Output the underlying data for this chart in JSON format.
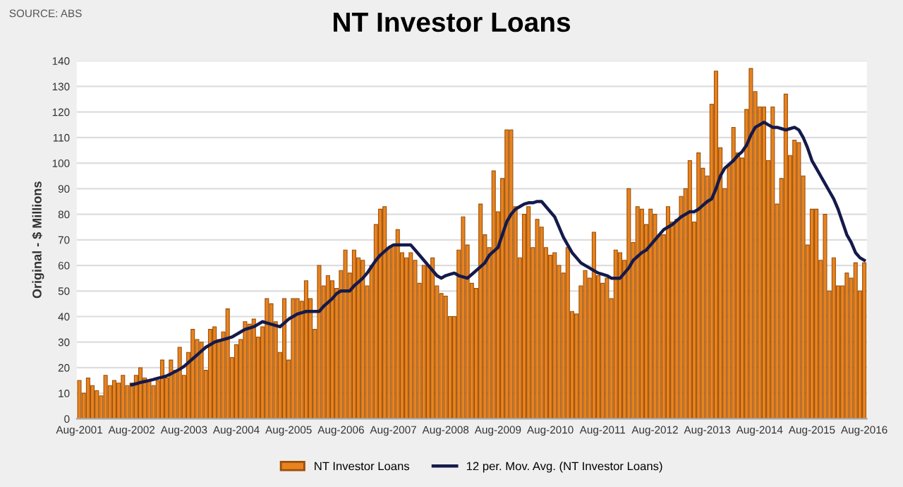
{
  "chart_data": {
    "type": "bar",
    "title": "NT Investor Loans",
    "ylabel": "Original - $ Millions",
    "annotations": [
      "SOURCE: ABS"
    ],
    "categories": [
      "Aug-2001",
      null,
      null,
      null,
      null,
      null,
      null,
      null,
      null,
      null,
      null,
      null,
      "Aug-2002",
      null,
      null,
      null,
      null,
      null,
      null,
      null,
      null,
      null,
      null,
      null,
      "Aug-2003",
      null,
      null,
      null,
      null,
      null,
      null,
      null,
      null,
      null,
      null,
      null,
      "Aug-2004",
      null,
      null,
      null,
      null,
      null,
      null,
      null,
      null,
      null,
      null,
      null,
      "Aug-2005",
      null,
      null,
      null,
      null,
      null,
      null,
      null,
      null,
      null,
      null,
      null,
      "Aug-2006",
      null,
      null,
      null,
      null,
      null,
      null,
      null,
      null,
      null,
      null,
      null,
      "Aug-2007",
      null,
      null,
      null,
      null,
      null,
      null,
      null,
      null,
      null,
      null,
      null,
      "Aug-2008",
      null,
      null,
      null,
      null,
      null,
      null,
      null,
      null,
      null,
      null,
      null,
      "Aug-2009",
      null,
      null,
      null,
      null,
      null,
      null,
      null,
      null,
      null,
      null,
      null,
      "Aug-2010",
      null,
      null,
      null,
      null,
      null,
      null,
      null,
      null,
      null,
      null,
      null,
      "Aug-2011",
      null,
      null,
      null,
      null,
      null,
      null,
      null,
      null,
      null,
      null,
      null,
      "Aug-2012",
      null,
      null,
      null,
      null,
      null,
      null,
      null,
      null,
      null,
      null,
      null,
      "Aug-2013",
      null,
      null,
      null,
      null,
      null,
      null,
      null,
      null,
      null,
      null,
      null,
      "Aug-2014",
      null,
      null,
      null,
      null,
      null,
      null,
      null,
      null,
      null,
      null,
      null,
      "Aug-2015",
      null,
      null,
      null,
      null,
      null,
      null,
      null,
      null,
      null,
      null,
      null,
      "Aug-2016"
    ],
    "series": [
      {
        "name": "NT Investor Loans",
        "color": "#e8831f",
        "values": [
          15,
          10,
          16,
          13,
          11,
          9,
          17,
          13,
          15,
          14,
          17,
          13,
          14,
          17,
          20,
          16,
          15,
          13,
          15,
          23,
          16,
          23,
          19,
          28,
          17,
          26,
          35,
          31,
          30,
          19,
          35,
          36,
          31,
          34,
          43,
          24,
          29,
          31,
          38,
          37,
          39,
          32,
          36,
          47,
          45,
          38,
          26,
          47,
          23,
          47,
          47,
          46,
          54,
          47,
          35,
          60,
          52,
          56,
          54,
          51,
          58,
          66,
          57,
          66,
          63,
          62,
          52,
          60,
          76,
          82,
          83,
          67,
          68,
          74,
          65,
          63,
          65,
          62,
          53,
          60,
          60,
          63,
          52,
          49,
          48,
          40,
          40,
          66,
          79,
          68,
          53,
          51,
          84,
          72,
          67,
          97,
          81,
          94,
          113,
          113,
          83,
          63,
          80,
          83,
          67,
          78,
          75,
          67,
          64,
          65,
          60,
          57,
          67,
          42,
          41,
          52,
          58,
          55,
          73,
          56,
          53,
          55,
          47,
          66,
          65,
          62,
          90,
          69,
          83,
          82,
          76,
          82,
          80,
          72,
          72,
          83,
          77,
          78,
          87,
          90,
          101,
          77,
          104,
          98,
          95,
          123,
          136,
          106,
          90,
          99,
          114,
          104,
          102,
          121,
          137,
          128,
          122,
          122,
          101,
          122,
          84,
          94,
          127,
          103,
          109,
          108,
          95,
          68,
          82,
          82,
          62,
          80,
          50,
          63,
          52,
          52,
          57,
          55,
          61,
          50,
          61
        ]
      },
      {
        "name": "12 per. Mov. Avg. (NT Investor Loans)",
        "type": "line",
        "color": "#141a4a",
        "values": [
          null,
          null,
          null,
          null,
          null,
          null,
          null,
          null,
          null,
          null,
          null,
          null,
          13.3,
          13.7,
          14.2,
          14.6,
          15,
          15.4,
          15.9,
          16.3,
          16.8,
          17.6,
          18.5,
          19.4,
          20.5,
          22,
          23.5,
          25,
          26.5,
          28,
          29,
          30,
          30.5,
          31,
          31.5,
          32,
          33,
          34,
          35,
          35.5,
          36,
          37,
          38,
          37.5,
          37,
          36.5,
          36,
          37.5,
          39,
          40,
          41,
          41.5,
          42,
          42,
          42,
          42,
          44,
          45.5,
          47,
          49,
          50,
          50,
          50,
          52,
          53.5,
          55,
          57,
          59.5,
          62,
          64,
          65.5,
          67,
          68,
          68,
          68,
          68,
          68,
          66,
          64,
          62,
          60,
          58,
          56,
          55,
          56,
          56.5,
          57,
          56,
          55.5,
          55,
          56.5,
          58,
          59.5,
          61,
          64,
          65.5,
          67,
          72,
          77,
          80,
          82,
          83,
          84,
          84.5,
          84.5,
          85,
          85,
          83,
          81,
          79,
          75,
          71,
          68,
          65,
          63,
          61,
          60,
          59,
          58,
          57,
          56.5,
          56,
          55,
          55,
          55,
          57,
          59,
          62,
          63.5,
          65,
          66,
          68,
          70,
          72,
          74,
          75,
          76,
          77.5,
          79,
          80,
          81,
          81,
          82,
          83.5,
          85,
          86,
          90,
          95,
          98,
          99.5,
          101,
          103,
          104.5,
          107,
          111,
          114,
          115,
          116,
          115,
          114,
          114,
          113.5,
          113,
          113.5,
          114,
          113,
          110,
          106,
          101,
          98,
          95,
          92,
          89,
          86,
          82,
          77,
          72,
          69,
          65,
          63,
          62
        ]
      }
    ],
    "ylim": [
      0,
      140
    ],
    "yticks": [
      0,
      10,
      20,
      30,
      40,
      50,
      60,
      70,
      80,
      90,
      100,
      110,
      120,
      130,
      140
    ],
    "grid": "y",
    "legend": "bottom"
  }
}
